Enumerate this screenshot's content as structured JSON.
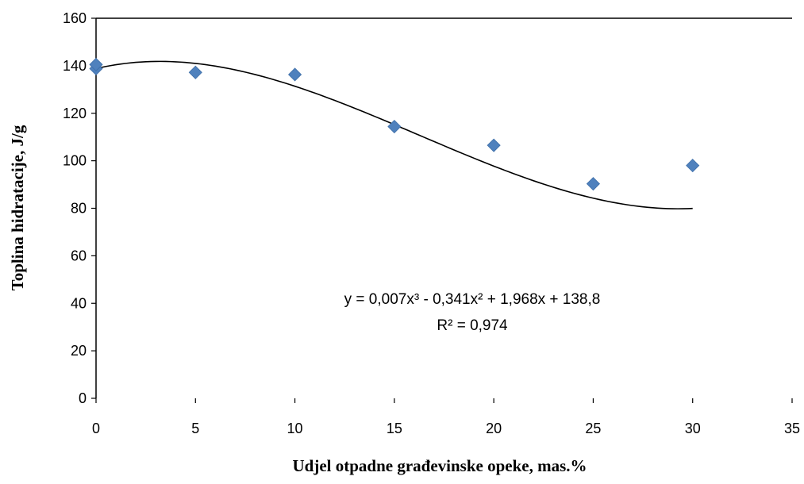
{
  "chart_data": {
    "type": "scatter",
    "xlabel": "Udjel otpadne građevinske opeke, mas.%",
    "ylabel": "Toplina hidratacije, J/g",
    "xlim": [
      0,
      35
    ],
    "ylim": [
      0,
      160
    ],
    "x_ticks": [
      "0",
      "5",
      "10",
      "15",
      "20",
      "25",
      "30",
      "35"
    ],
    "y_ticks": [
      "0",
      "20",
      "40",
      "60",
      "80",
      "100",
      "120",
      "140",
      "160"
    ],
    "grid": false,
    "legend": "none",
    "series": [
      {
        "color": "#4F81BD",
        "marker": "diamond",
        "points": [
          {
            "x": 0,
            "y": 138.8
          },
          {
            "x": 0,
            "y": 140.5
          },
          {
            "x": 5,
            "y": 137.2
          },
          {
            "x": 10,
            "y": 136.3
          },
          {
            "x": 15,
            "y": 114.4
          },
          {
            "x": 20,
            "y": 106.5
          },
          {
            "x": 25,
            "y": 90.3
          },
          {
            "x": 30,
            "y": 98.0
          }
        ]
      }
    ],
    "trendline": {
      "type": "polynomial",
      "order": 3,
      "coefficients": [
        0.007,
        -0.341,
        1.968,
        138.8
      ],
      "color": "#000000"
    },
    "annotations": {
      "equation": "y = 0,007x³ - 0,341x² + 1,968x + 138,8",
      "r_squared": "R² = 0,974"
    }
  }
}
